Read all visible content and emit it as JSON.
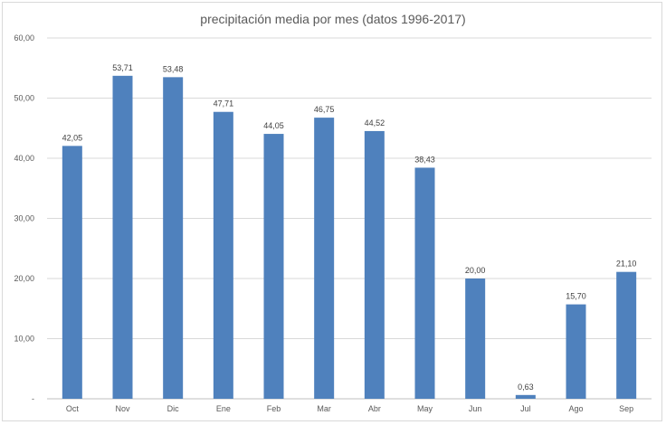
{
  "chart_data": {
    "type": "bar",
    "title": "precipitación media por mes (datos 1996-2017)",
    "xlabel": "",
    "ylabel": "",
    "categories": [
      "Oct",
      "Nov",
      "Dic",
      "Ene",
      "Feb",
      "Mar",
      "Abr",
      "May",
      "Jun",
      "Jul",
      "Ago",
      "Sep"
    ],
    "values": [
      42.05,
      53.71,
      53.48,
      47.71,
      44.05,
      46.75,
      44.52,
      38.43,
      20.0,
      0.63,
      15.7,
      21.1
    ],
    "data_labels": [
      "42,05",
      "53,71",
      "53,48",
      "47,71",
      "44,05",
      "46,75",
      "44,52",
      "38,43",
      "20,00",
      "0,63",
      "15,70",
      "21,10"
    ],
    "ylim": [
      0,
      60
    ],
    "yticks": [
      0,
      10,
      20,
      30,
      40,
      50,
      60
    ],
    "ytick_labels": [
      "-",
      "10,00",
      "20,00",
      "30,00",
      "40,00",
      "50,00",
      "60,00"
    ],
    "grid": true,
    "legend": "none",
    "bar_color": "#4f81bd",
    "grid_color": "#d9d9d9"
  }
}
